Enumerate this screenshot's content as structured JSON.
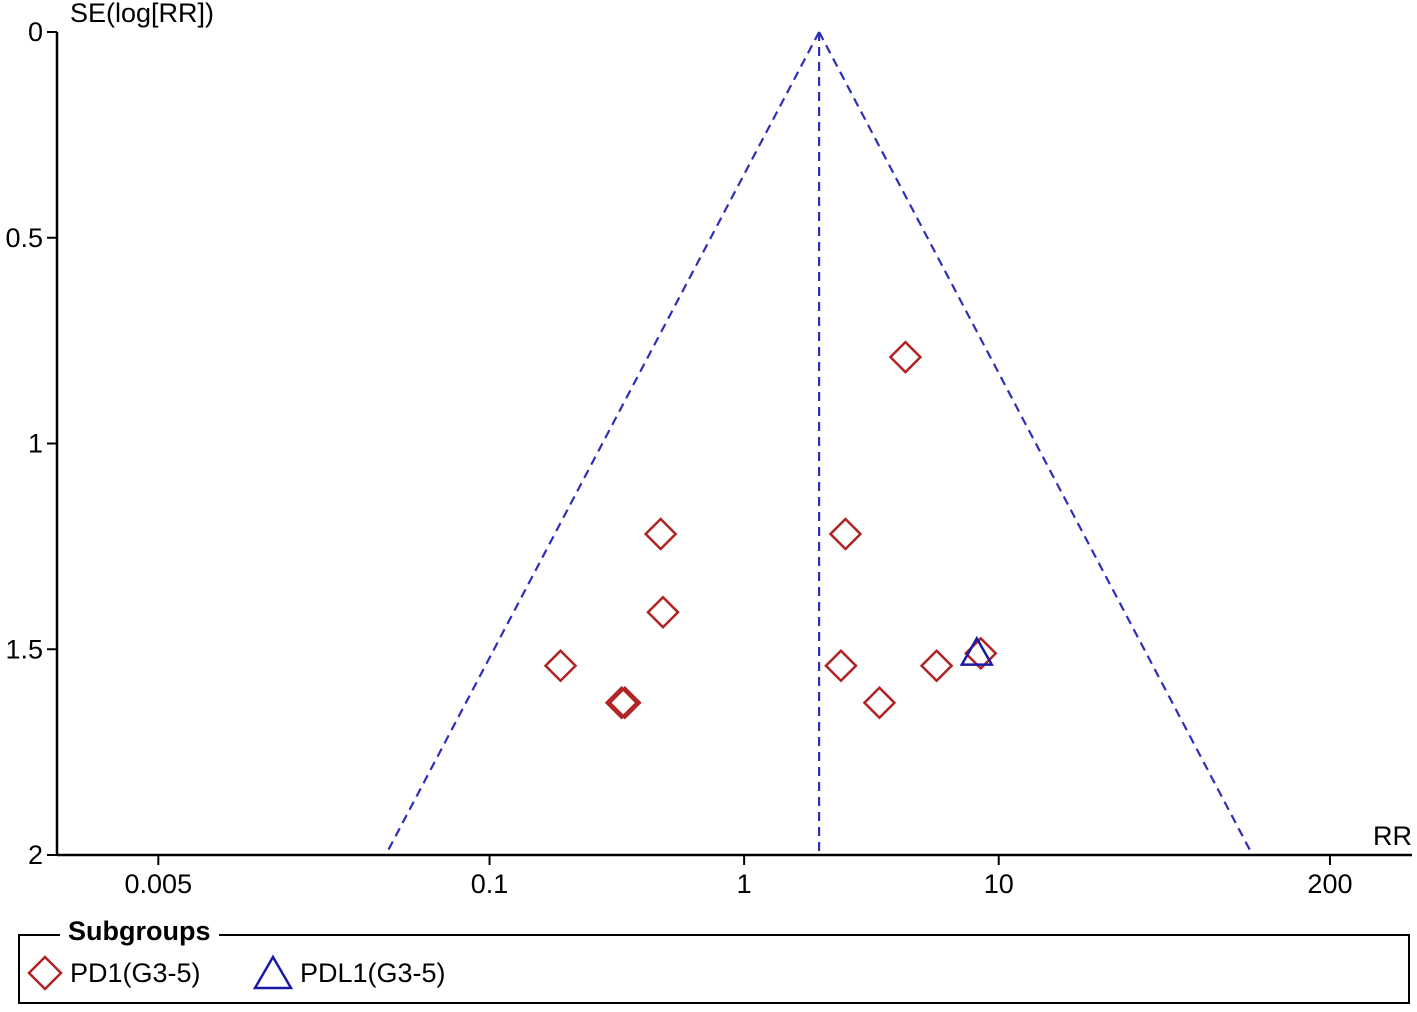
{
  "chart_data": {
    "type": "scatter",
    "title": "",
    "xlabel": "RR",
    "ylabel": "SE(log[RR])",
    "x_scale": "log",
    "x_ticks": [
      "0.005",
      "0.1",
      "1",
      "10",
      "200"
    ],
    "x_tick_values": [
      0.005,
      0.1,
      1,
      10,
      200
    ],
    "y_ticks": [
      "0",
      "0.5",
      "1",
      "1.5",
      "2"
    ],
    "y_tick_values": [
      0,
      0.5,
      1,
      1.5,
      2
    ],
    "y_inverted": true,
    "ylim": [
      0,
      2
    ],
    "xlim": [
      0.002,
      420
    ],
    "pooled_estimate": 1.97,
    "funnel_lines": "95% pseudo confidence limits",
    "grid": false,
    "legend_placement": "bottom",
    "legend_title": "Subgroups",
    "series": [
      {
        "name": "PD1(G3-5)",
        "marker": "diamond",
        "color": "#b22222",
        "points": [
          {
            "x": 4.3,
            "y": 0.79
          },
          {
            "x": 0.47,
            "y": 1.22
          },
          {
            "x": 2.5,
            "y": 1.22
          },
          {
            "x": 0.48,
            "y": 1.41
          },
          {
            "x": 0.19,
            "y": 1.54
          },
          {
            "x": 0.33,
            "y": 1.63
          },
          {
            "x": 0.34,
            "y": 1.63
          },
          {
            "x": 2.4,
            "y": 1.54
          },
          {
            "x": 3.4,
            "y": 1.63
          },
          {
            "x": 5.7,
            "y": 1.54
          },
          {
            "x": 8.5,
            "y": 1.51
          }
        ]
      },
      {
        "name": "PDL1(G3-5)",
        "marker": "triangle",
        "color": "#1a1aa6",
        "points": [
          {
            "x": 8.2,
            "y": 1.51
          }
        ]
      }
    ]
  }
}
